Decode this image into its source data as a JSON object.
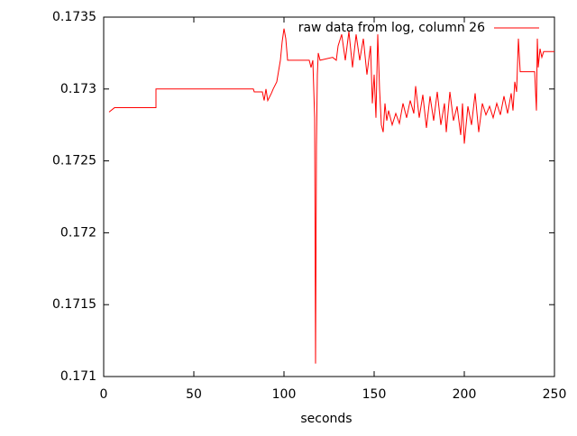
{
  "chart_data": {
    "type": "line",
    "xlabel": "seconds",
    "x": [
      3,
      6,
      29,
      29,
      83,
      83.5,
      88,
      89,
      90,
      91,
      93,
      94,
      96,
      98,
      99,
      100,
      101,
      102,
      114,
      115,
      116,
      117,
      117.5,
      118,
      118.5,
      119,
      120,
      127,
      129,
      130,
      132,
      134,
      136,
      138,
      140,
      142,
      144,
      146,
      148,
      149,
      150,
      151,
      152,
      153,
      154,
      155,
      156,
      157,
      158,
      160,
      162,
      164,
      166,
      168,
      170,
      172,
      173,
      175,
      177,
      179,
      181,
      183,
      185,
      187,
      189,
      190,
      192,
      194,
      196,
      198,
      199,
      200,
      202,
      204,
      206,
      208,
      210,
      212,
      214,
      216,
      218,
      220,
      222,
      224,
      226,
      227,
      228,
      229,
      230,
      231,
      232,
      239,
      240,
      240.5,
      241,
      242,
      243,
      244,
      250
    ],
    "series": [
      {
        "name": "raw data from log, column 26",
        "color": "#ff0000",
        "values": [
          0.17284,
          0.17287,
          0.17287,
          0.173,
          0.173,
          0.17298,
          0.17298,
          0.17292,
          0.173,
          0.17292,
          0.17297,
          0.173,
          0.17305,
          0.1732,
          0.17333,
          0.17342,
          0.17335,
          0.1732,
          0.1732,
          0.17315,
          0.1732,
          0.1728,
          0.17109,
          0.1726,
          0.1731,
          0.17325,
          0.1732,
          0.17322,
          0.1732,
          0.1733,
          0.17338,
          0.1732,
          0.1734,
          0.17315,
          0.17338,
          0.1732,
          0.17335,
          0.1731,
          0.1733,
          0.1729,
          0.1731,
          0.1728,
          0.17338,
          0.173,
          0.17275,
          0.1727,
          0.1729,
          0.17278,
          0.17285,
          0.17275,
          0.17283,
          0.17276,
          0.1729,
          0.1728,
          0.17292,
          0.17283,
          0.17302,
          0.1728,
          0.17296,
          0.17273,
          0.17295,
          0.17278,
          0.17298,
          0.17275,
          0.1729,
          0.1727,
          0.17298,
          0.17278,
          0.17288,
          0.17268,
          0.1729,
          0.17262,
          0.17288,
          0.17275,
          0.17297,
          0.1727,
          0.1729,
          0.17282,
          0.17288,
          0.1728,
          0.1729,
          0.17282,
          0.17295,
          0.17283,
          0.17297,
          0.17285,
          0.17305,
          0.17298,
          0.17335,
          0.17312,
          0.17312,
          0.17312,
          0.17285,
          0.17335,
          0.17315,
          0.17328,
          0.17322,
          0.17326,
          0.17326
        ]
      }
    ],
    "xlim": [
      0,
      250
    ],
    "xticks": [
      0,
      50,
      100,
      150,
      200,
      250
    ],
    "ylim": [
      0.171,
      0.1735
    ],
    "yticks": [
      0.171,
      0.1715,
      0.172,
      0.1725,
      0.173,
      0.1735
    ],
    "grid": false,
    "legend": "top-right"
  }
}
